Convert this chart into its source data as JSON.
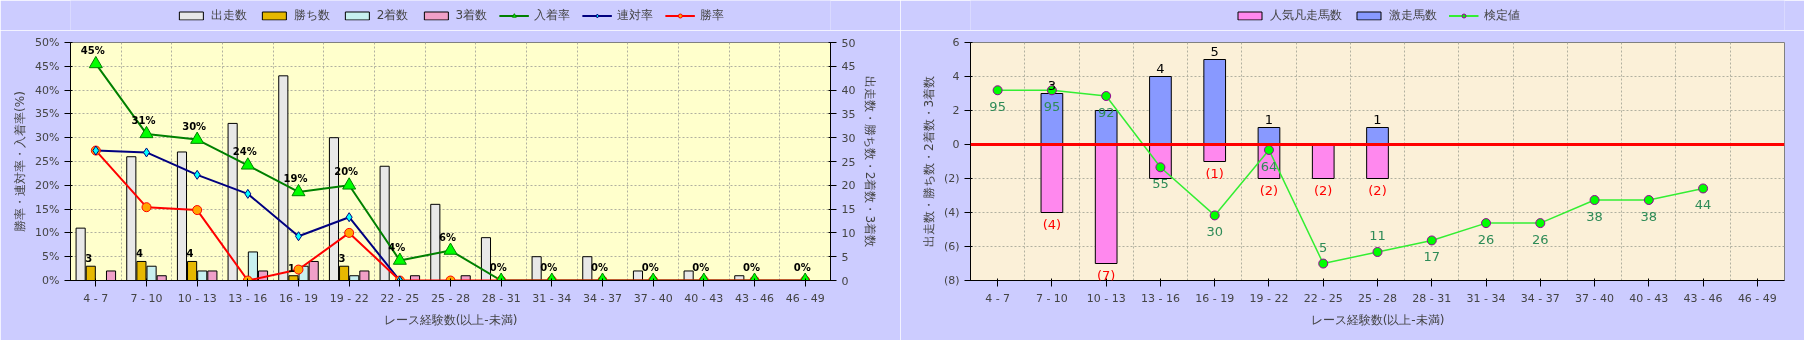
{
  "chart_data": [
    {
      "type": "bar",
      "xlabel": "レース経験数(以上-未満)",
      "ylabel": "勝率・連対率・入着率(%)",
      "y2label": "出走数・勝ち数・2着数・3着数",
      "categories": [
        "4 - 7",
        "7 - 10",
        "10 - 13",
        "13 - 16",
        "16 - 19",
        "19 - 22",
        "22 - 25",
        "25 - 28",
        "28 - 31",
        "31 - 34",
        "34 - 37",
        "37 - 40",
        "40 - 43",
        "43 - 46",
        "46 - 49"
      ],
      "ylim": [
        0,
        50
      ],
      "yticks": [
        {
          "value": 0,
          "label": "0%"
        },
        {
          "value": 5,
          "label": "5%"
        },
        {
          "value": 10,
          "label": "10%"
        },
        {
          "value": 15,
          "label": "15%"
        },
        {
          "value": 20,
          "label": "20%"
        },
        {
          "value": 25,
          "label": "25%"
        },
        {
          "value": 30,
          "label": "30%"
        },
        {
          "value": 35,
          "label": "35%"
        },
        {
          "value": 40,
          "label": "40%"
        },
        {
          "value": 45,
          "label": "45%"
        },
        {
          "value": 50,
          "label": "50%"
        }
      ],
      "y2lim": [
        0,
        50
      ],
      "y2ticks": [
        0,
        5,
        10,
        15,
        20,
        25,
        30,
        35,
        40,
        45,
        50
      ],
      "grid": true,
      "legend": "top",
      "series": [
        {
          "name": "出走数",
          "axis": "y2",
          "color": "#e8e8e8",
          "values": [
            11,
            26,
            27,
            33,
            43,
            30,
            24,
            16,
            9,
            5,
            5,
            2,
            2,
            1,
            null
          ]
        },
        {
          "name": "勝ち数",
          "axis": "y2",
          "color": "#e6b800",
          "values": [
            3,
            4,
            4,
            0,
            1,
            3,
            0,
            0,
            0,
            0,
            0,
            0,
            0,
            0,
            null
          ],
          "value_labels": [
            "3",
            "4",
            "4",
            null,
            "1",
            "3",
            null,
            null,
            null,
            null,
            null,
            null,
            null,
            null,
            null
          ]
        },
        {
          "name": "2着数",
          "axis": "y2",
          "color": "#c8f0f0",
          "values": [
            0,
            3,
            2,
            6,
            3,
            1,
            0,
            0,
            0,
            0,
            0,
            0,
            0,
            0,
            null
          ]
        },
        {
          "name": "3着数",
          "axis": "y2",
          "color": "#f0a0c8",
          "values": [
            2,
            1,
            2,
            2,
            4,
            2,
            1,
            1,
            0,
            0,
            0,
            0,
            0,
            0,
            null
          ]
        },
        {
          "name": "入着率",
          "type": "line",
          "marker": "triangle",
          "color": "#008000",
          "values": [
            45.5,
            30.8,
            29.6,
            24.2,
            18.6,
            20.0,
            4.2,
            6.3,
            0,
            0,
            0,
            0,
            0,
            0,
            0
          ],
          "value_labels": [
            "45%",
            "31%",
            "30%",
            "24%",
            "19%",
            "20%",
            "4%",
            "6%",
            "0%",
            "0%",
            "0%",
            "0%",
            "0%",
            "0%",
            "0%"
          ]
        },
        {
          "name": "連対率",
          "type": "line",
          "marker": "diamond",
          "color": "#000080",
          "values": [
            27.3,
            26.9,
            22.2,
            18.2,
            9.3,
            13.3,
            0,
            null,
            null,
            null,
            null,
            null,
            null,
            null,
            null
          ]
        },
        {
          "name": "勝率",
          "type": "line",
          "marker": "circle",
          "color": "#ff0000",
          "values": [
            27.3,
            15.4,
            14.8,
            0,
            2.3,
            10.0,
            0,
            0,
            0,
            0,
            0,
            0,
            0,
            0,
            0
          ]
        }
      ]
    },
    {
      "type": "bar",
      "stacked": true,
      "xlabel": "レース経験数(以上-未満)",
      "ylabel": "出走数・勝ち数・2着数・3着数",
      "categories": [
        "4 - 7",
        "7 - 10",
        "10 - 13",
        "13 - 16",
        "16 - 19",
        "19 - 22",
        "22 - 25",
        "25 - 28",
        "28 - 31",
        "31 - 34",
        "34 - 37",
        "37 - 40",
        "40 - 43",
        "43 - 46",
        "46 - 49"
      ],
      "ylim": [
        -8,
        6
      ],
      "yticks": [
        {
          "value": -8,
          "label": "(8)"
        },
        {
          "value": -6,
          "label": "(6)"
        },
        {
          "value": -4,
          "label": "(4)"
        },
        {
          "value": -2,
          "label": "(2)"
        },
        0,
        2,
        4,
        6
      ],
      "y2lim": [
        -3.8,
        119.8
      ],
      "grid": true,
      "legend": "top",
      "ref_lines": [
        {
          "axis": "y",
          "value": 0,
          "color": "#ff0000"
        }
      ],
      "series": [
        {
          "name": "人気凡走馬数",
          "color": "#ff88ee",
          "values": [
            null,
            -4,
            -7,
            -2,
            -1,
            -2,
            -2,
            -2,
            null,
            null,
            null,
            null,
            null,
            null,
            null
          ],
          "value_labels": [
            null,
            "(4)",
            "(7)",
            null,
            "(1)",
            "(2)",
            "(2)",
            "(2)",
            null,
            null,
            null,
            null,
            null,
            null,
            null
          ]
        },
        {
          "name": "激走馬数",
          "color": "#8899ff",
          "values": [
            null,
            3,
            2,
            4,
            5,
            1,
            null,
            1,
            null,
            null,
            null,
            null,
            null,
            null,
            null
          ],
          "value_labels": [
            null,
            "3",
            null,
            "4",
            "5",
            "1",
            null,
            "1",
            null,
            null,
            null,
            null,
            null,
            null,
            null
          ]
        },
        {
          "name": "検定値",
          "type": "line",
          "axis": "y2",
          "marker": "circle",
          "color": "#33ee33",
          "values": [
            95,
            95,
            92,
            55,
            30,
            64,
            5,
            11,
            17,
            26,
            26,
            38,
            38,
            44,
            null
          ],
          "data_labels": true
        }
      ]
    }
  ]
}
